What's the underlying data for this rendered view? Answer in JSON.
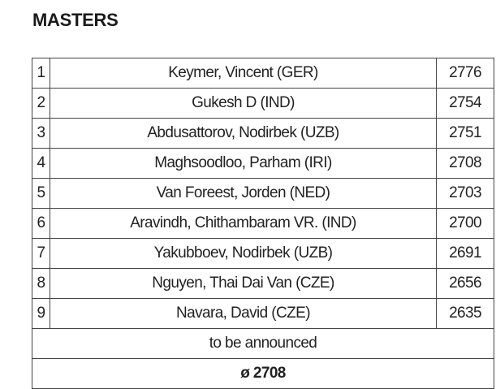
{
  "header": {
    "title": "MASTERS"
  },
  "table": {
    "rows": [
      [
        1,
        "Keymer, Vincent (GER)",
        2776
      ],
      [
        2,
        "Gukesh D (IND)",
        2754
      ],
      [
        3,
        "Abdusattorov, Nodirbek (UZB)",
        2751
      ],
      [
        4,
        "Maghsoodloo, Parham (IRI)",
        2708
      ],
      [
        5,
        "Van Foreest, Jorden (NED)",
        2703
      ],
      [
        6,
        "Aravindh, Chithambaram VR. (IND)",
        2700
      ],
      [
        7,
        "Yakubboev, Nodirbek (UZB)",
        2691
      ],
      [
        8,
        "Nguyen, Thai Dai Van (CZE)",
        2656
      ],
      [
        9,
        "Navara, David (CZE)",
        2635
      ]
    ],
    "note": "to be announced",
    "average": "ø 2708"
  }
}
